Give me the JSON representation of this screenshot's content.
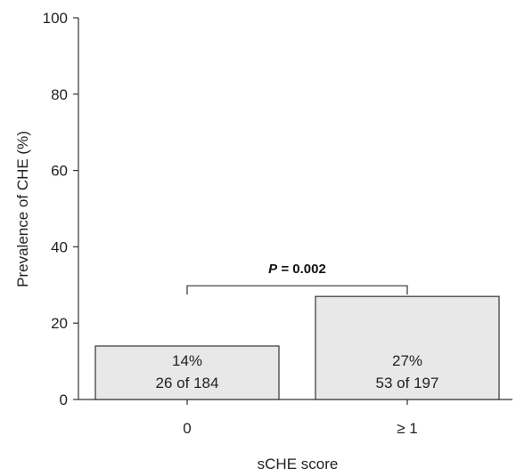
{
  "chart_data": {
    "type": "bar",
    "categories": [
      "0",
      "≥ 1"
    ],
    "values": [
      14,
      27
    ],
    "bar_labels": [
      {
        "percent": "14%",
        "count": "26 of 184"
      },
      {
        "percent": "27%",
        "count": "53 of 197"
      }
    ],
    "xlabel": "sCHE score",
    "ylabel": "Prevalence of CHE (%)",
    "ylim": [
      0,
      100
    ],
    "yticks": [
      "0",
      "20",
      "40",
      "60",
      "80",
      "100"
    ],
    "grid": false,
    "annotation": {
      "prefix": "P",
      "text": " = 0.002"
    },
    "bar_color": "#e8e8e8",
    "bar_edge_color": "#333333"
  }
}
